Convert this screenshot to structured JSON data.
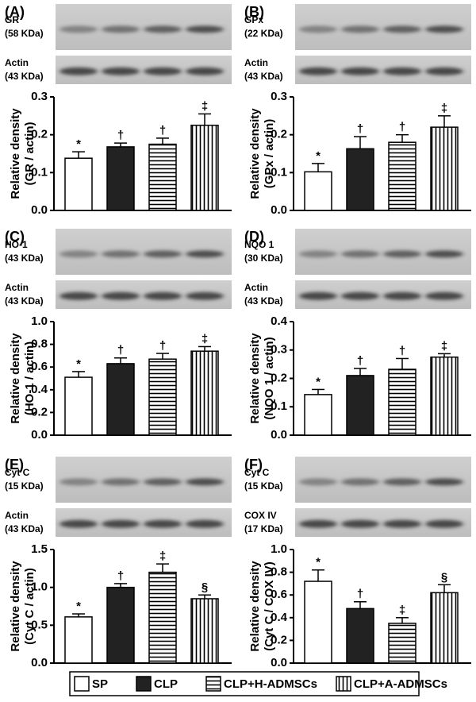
{
  "chart_data": [
    {
      "type": "bar",
      "label": "(A)",
      "blots": [
        {
          "name": "GR",
          "size": "(58 KDa)"
        },
        {
          "name": "Actin",
          "size": "(43 KDa)"
        }
      ],
      "ylabel": [
        "Relative density",
        "(GR / actin)"
      ],
      "ylim": [
        0,
        0.3
      ],
      "yticks": [
        {
          "value": 0,
          "label": "0.0"
        },
        0.1,
        0.2,
        0.3
      ],
      "values": [
        0.138,
        0.168,
        0.175,
        0.225
      ],
      "errors": [
        0.017,
        0.01,
        0.016,
        0.03
      ],
      "annotations": [
        "*",
        "†",
        "†",
        "‡"
      ]
    },
    {
      "type": "bar",
      "label": "(B)",
      "blots": [
        {
          "name": "GPx",
          "size": "(22 KDa)"
        },
        {
          "name": "Actin",
          "size": "(43 KDa)"
        }
      ],
      "ylabel": [
        "Relative density",
        "(GPx / actin)"
      ],
      "ylim": [
        0,
        0.3
      ],
      "yticks": [
        {
          "value": 0,
          "label": "0.0"
        },
        0.1,
        0.2,
        0.3
      ],
      "values": [
        0.102,
        0.163,
        0.18,
        0.22
      ],
      "errors": [
        0.022,
        0.032,
        0.02,
        0.03
      ],
      "annotations": [
        "*",
        "†",
        "†",
        "‡"
      ]
    },
    {
      "type": "bar",
      "label": "(C)",
      "blots": [
        {
          "name": "HO-1",
          "size": "(43 KDa)"
        },
        {
          "name": "Actin",
          "size": "(43 KDa)"
        }
      ],
      "ylabel": [
        "Relative density",
        "(HO-1 / actin)"
      ],
      "ylim": [
        0,
        1
      ],
      "yticks": [
        {
          "value": 0,
          "label": "0.0"
        },
        0.2,
        0.4,
        0.6,
        0.8,
        {
          "value": 1,
          "label": "1.0"
        }
      ],
      "values": [
        0.51,
        0.63,
        0.67,
        0.74
      ],
      "errors": [
        0.05,
        0.05,
        0.05,
        0.04
      ],
      "annotations": [
        "*",
        "†",
        "†",
        "‡"
      ]
    },
    {
      "type": "bar",
      "label": "(D)",
      "blots": [
        {
          "name": "NQO 1",
          "size": "(30 KDa)"
        },
        {
          "name": "Actin",
          "size": "(43 KDa)"
        }
      ],
      "ylabel": [
        "Relative density",
        "(NQO 1 / actin)"
      ],
      "ylim": [
        0,
        0.4
      ],
      "yticks": [
        {
          "value": 0,
          "label": "0.0"
        },
        0.1,
        0.2,
        0.3,
        0.4
      ],
      "values": [
        0.143,
        0.21,
        0.232,
        0.275
      ],
      "errors": [
        0.018,
        0.025,
        0.038,
        0.012
      ],
      "annotations": [
        "*",
        "†",
        "†",
        "‡"
      ]
    },
    {
      "type": "bar",
      "label": "(E)",
      "blots": [
        {
          "name": "Cyt C",
          "size": "(15 KDa)"
        },
        {
          "name": "Actin",
          "size": "(43 KDa)"
        }
      ],
      "ylabel": [
        "Relative density",
        "(Cyt C / actin)"
      ],
      "ylim": [
        0,
        1.5
      ],
      "yticks": [
        {
          "value": 0,
          "label": "0.0"
        },
        0.5,
        {
          "value": 1,
          "label": "1.0"
        },
        1.5
      ],
      "values": [
        0.61,
        1.0,
        1.2,
        0.85
      ],
      "errors": [
        0.04,
        0.05,
        0.11,
        0.05
      ],
      "annotations": [
        "*",
        "†",
        "‡",
        "§"
      ]
    },
    {
      "type": "bar",
      "label": "(F)",
      "blots": [
        {
          "name": "Cyt C",
          "size": "(15 KDa)"
        },
        {
          "name": "COX IV",
          "size": "(17 KDa)"
        }
      ],
      "ylabel": [
        "Relative density",
        "(Cyt C / COX IV)"
      ],
      "ylim": [
        0,
        1
      ],
      "yticks": [
        {
          "value": 0,
          "label": "0.0"
        },
        0.2,
        0.4,
        0.6,
        0.8,
        {
          "value": 1,
          "label": "1.0"
        }
      ],
      "values": [
        0.72,
        0.48,
        0.35,
        0.62
      ],
      "errors": [
        0.1,
        0.06,
        0.05,
        0.07
      ],
      "annotations": [
        "*",
        "†",
        "‡",
        "§"
      ]
    }
  ],
  "legend": {
    "entries": [
      "SP",
      "CLP",
      "CLP+H-ADMSCs",
      "CLP+A-ADMSCs"
    ],
    "patterns": [
      "none",
      "solid",
      "horizontal",
      "vertical"
    ]
  }
}
